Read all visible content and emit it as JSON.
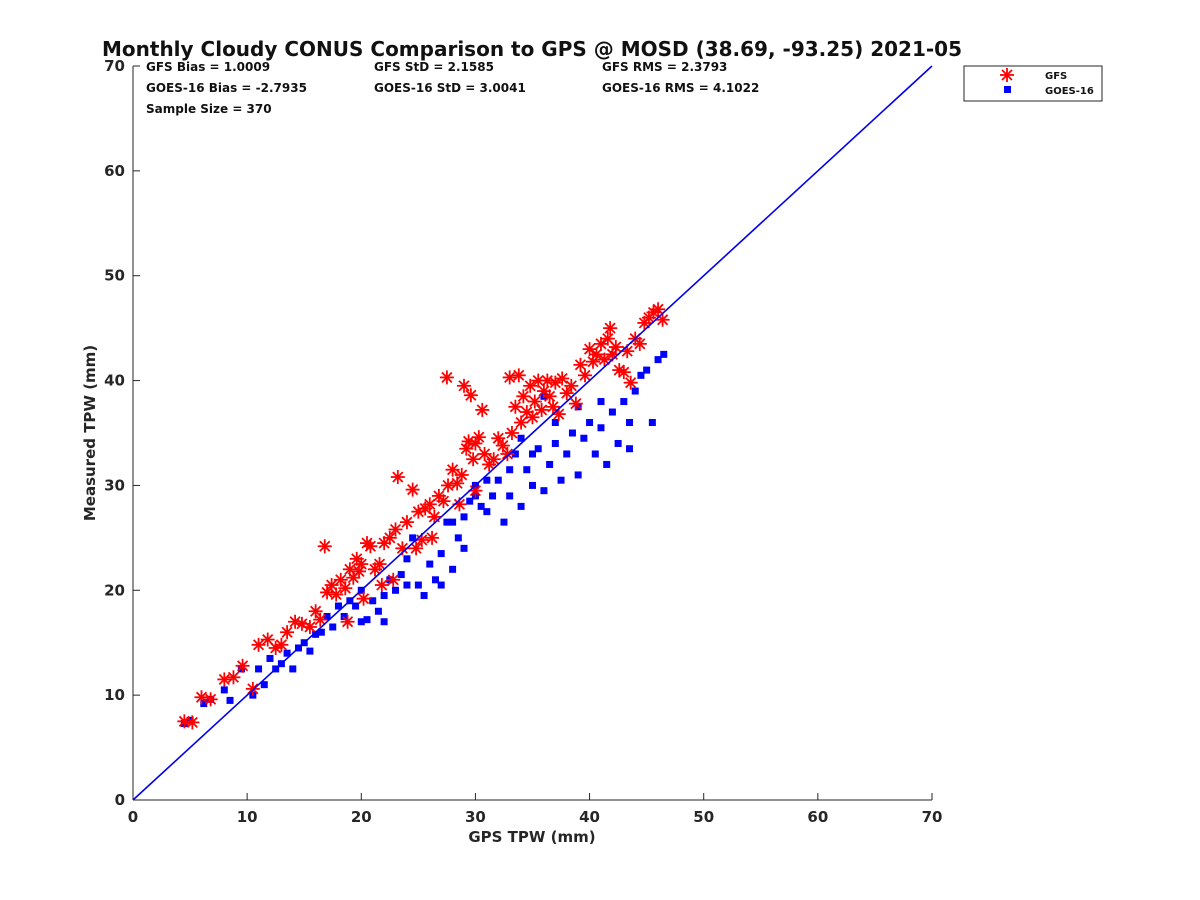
{
  "chart_data": {
    "type": "scatter",
    "title": "Monthly Cloudy CONUS Comparison to GPS @ MOSD (38.69, -93.25) 2021-05",
    "xlabel": "GPS TPW (mm)",
    "ylabel": "Measured TPW (mm)",
    "xlim": [
      0,
      70
    ],
    "ylim": [
      0,
      70
    ],
    "xticks": [
      "0",
      "10",
      "20",
      "30",
      "40",
      "50",
      "60",
      "70"
    ],
    "yticks": [
      "0",
      "10",
      "20",
      "30",
      "40",
      "50",
      "60",
      "70"
    ],
    "grid": false,
    "legend_position": "outside-top-right",
    "stats": {
      "gfs_bias": "GFS Bias = 1.0009",
      "gfs_std": "GFS StD = 2.1585",
      "gfs_rms": "GFS RMS = 2.3793",
      "goes_bias": "GOES-16 Bias = -2.7935",
      "goes_std": "GOES-16 StD = 3.0041",
      "goes_rms": "GOES-16 RMS = 4.1022",
      "sample_size": "Sample Size = 370"
    },
    "reference_line": {
      "name": "1:1 line",
      "x": [
        0,
        70
      ],
      "y": [
        0,
        70
      ],
      "color": "#0000ee"
    },
    "series": [
      {
        "name": "GFS",
        "marker": "asterisk",
        "color": "#ff0000",
        "points": [
          [
            4.5,
            7.5
          ],
          [
            5.2,
            7.4
          ],
          [
            6.0,
            9.8
          ],
          [
            6.8,
            9.6
          ],
          [
            8.0,
            11.5
          ],
          [
            8.8,
            11.7
          ],
          [
            9.6,
            12.8
          ],
          [
            10.5,
            10.6
          ],
          [
            11.0,
            14.8
          ],
          [
            11.8,
            15.3
          ],
          [
            12.5,
            14.5
          ],
          [
            13.0,
            14.8
          ],
          [
            13.5,
            16.0
          ],
          [
            14.2,
            17.0
          ],
          [
            14.8,
            16.8
          ],
          [
            15.5,
            16.5
          ],
          [
            16.0,
            18.0
          ],
          [
            16.4,
            17.2
          ],
          [
            16.8,
            24.2
          ],
          [
            17.0,
            19.8
          ],
          [
            17.4,
            20.5
          ],
          [
            17.8,
            19.6
          ],
          [
            18.2,
            21.0
          ],
          [
            18.6,
            20.2
          ],
          [
            19.0,
            22.0
          ],
          [
            19.3,
            21.2
          ],
          [
            19.6,
            23.0
          ],
          [
            19.8,
            21.8
          ],
          [
            20.0,
            22.5
          ],
          [
            20.5,
            24.5
          ],
          [
            20.8,
            24.2
          ],
          [
            21.2,
            22.0
          ],
          [
            21.6,
            22.5
          ],
          [
            22.0,
            24.5
          ],
          [
            22.5,
            25.0
          ],
          [
            23.0,
            25.8
          ],
          [
            23.2,
            30.8
          ],
          [
            23.6,
            24.0
          ],
          [
            24.0,
            26.5
          ],
          [
            24.5,
            29.6
          ],
          [
            25.0,
            27.5
          ],
          [
            25.3,
            24.8
          ],
          [
            25.6,
            27.8
          ],
          [
            26.0,
            28.2
          ],
          [
            26.4,
            27.0
          ],
          [
            26.8,
            29.0
          ],
          [
            27.2,
            28.5
          ],
          [
            27.6,
            30.0
          ],
          [
            27.5,
            40.3
          ],
          [
            28.0,
            31.5
          ],
          [
            28.4,
            30.2
          ],
          [
            28.8,
            31.0
          ],
          [
            29.0,
            39.5
          ],
          [
            29.2,
            33.5
          ],
          [
            29.4,
            34.2
          ],
          [
            29.6,
            38.6
          ],
          [
            29.8,
            32.5
          ],
          [
            30.0,
            34.0
          ],
          [
            30.3,
            34.6
          ],
          [
            30.6,
            37.2
          ],
          [
            30.8,
            33.0
          ],
          [
            31.2,
            32.0
          ],
          [
            31.6,
            32.5
          ],
          [
            32.0,
            34.5
          ],
          [
            32.4,
            33.8
          ],
          [
            32.8,
            33.0
          ],
          [
            33.0,
            40.3
          ],
          [
            33.2,
            35.0
          ],
          [
            33.5,
            37.5
          ],
          [
            33.8,
            40.5
          ],
          [
            34.0,
            36.0
          ],
          [
            34.2,
            38.5
          ],
          [
            34.5,
            37.0
          ],
          [
            34.8,
            39.5
          ],
          [
            35.0,
            36.5
          ],
          [
            35.2,
            38.0
          ],
          [
            35.5,
            40.0
          ],
          [
            35.8,
            37.2
          ],
          [
            36.0,
            39.0
          ],
          [
            36.3,
            40.0
          ],
          [
            36.5,
            38.5
          ],
          [
            36.8,
            37.5
          ],
          [
            37.0,
            39.8
          ],
          [
            37.3,
            36.8
          ],
          [
            37.6,
            40.2
          ],
          [
            38.0,
            38.8
          ],
          [
            38.4,
            39.5
          ],
          [
            38.8,
            37.8
          ],
          [
            39.2,
            41.5
          ],
          [
            39.6,
            40.5
          ],
          [
            40.0,
            43.0
          ],
          [
            40.3,
            41.8
          ],
          [
            40.6,
            42.5
          ],
          [
            41.0,
            43.5
          ],
          [
            41.3,
            42.0
          ],
          [
            41.6,
            44.0
          ],
          [
            41.8,
            45.0
          ],
          [
            42.0,
            42.5
          ],
          [
            42.3,
            43.2
          ],
          [
            42.6,
            41.0
          ],
          [
            43.0,
            40.8
          ],
          [
            43.3,
            42.8
          ],
          [
            43.6,
            39.8
          ],
          [
            44.0,
            44.0
          ],
          [
            44.4,
            43.5
          ],
          [
            44.8,
            45.5
          ],
          [
            45.2,
            46.0
          ],
          [
            45.6,
            46.5
          ],
          [
            46.0,
            46.8
          ],
          [
            46.4,
            45.8
          ],
          [
            30.0,
            29.5
          ],
          [
            28.6,
            28.2
          ],
          [
            26.2,
            25.0
          ],
          [
            24.8,
            24.0
          ],
          [
            22.8,
            21.0
          ],
          [
            21.8,
            20.5
          ],
          [
            18.8,
            17.0
          ],
          [
            20.2,
            19.2
          ]
        ]
      },
      {
        "name": "GOES-16",
        "marker": "square",
        "color": "#0000ff",
        "points": [
          [
            4.5,
            7.3
          ],
          [
            5.0,
            7.6
          ],
          [
            6.2,
            9.2
          ],
          [
            6.8,
            9.6
          ],
          [
            8.0,
            10.5
          ],
          [
            8.5,
            9.5
          ],
          [
            9.5,
            12.5
          ],
          [
            10.5,
            10.0
          ],
          [
            11.0,
            12.5
          ],
          [
            11.5,
            11.0
          ],
          [
            12.0,
            13.5
          ],
          [
            12.5,
            12.5
          ],
          [
            13.0,
            13.0
          ],
          [
            13.5,
            14.0
          ],
          [
            14.0,
            12.5
          ],
          [
            14.5,
            14.5
          ],
          [
            15.0,
            15.0
          ],
          [
            15.5,
            14.2
          ],
          [
            16.0,
            15.8
          ],
          [
            16.5,
            16.0
          ],
          [
            17.0,
            17.5
          ],
          [
            17.5,
            16.5
          ],
          [
            18.0,
            18.5
          ],
          [
            18.5,
            17.5
          ],
          [
            19.0,
            19.0
          ],
          [
            19.5,
            18.5
          ],
          [
            20.0,
            20.0
          ],
          [
            20.5,
            17.2
          ],
          [
            21.0,
            19.0
          ],
          [
            21.5,
            18.0
          ],
          [
            22.0,
            19.5
          ],
          [
            22.5,
            21.0
          ],
          [
            23.0,
            20.0
          ],
          [
            23.5,
            21.5
          ],
          [
            24.0,
            23.0
          ],
          [
            24.5,
            25.0
          ],
          [
            25.0,
            20.5
          ],
          [
            25.5,
            19.5
          ],
          [
            26.0,
            22.5
          ],
          [
            26.5,
            21.0
          ],
          [
            27.0,
            23.5
          ],
          [
            27.5,
            26.5
          ],
          [
            28.0,
            22.0
          ],
          [
            28.5,
            25.0
          ],
          [
            29.0,
            27.0
          ],
          [
            29.5,
            28.5
          ],
          [
            30.0,
            30.0
          ],
          [
            30.5,
            28.0
          ],
          [
            31.0,
            27.5
          ],
          [
            31.5,
            29.0
          ],
          [
            32.0,
            30.5
          ],
          [
            32.5,
            26.5
          ],
          [
            33.0,
            29.0
          ],
          [
            33.5,
            33.0
          ],
          [
            34.0,
            28.0
          ],
          [
            34.5,
            31.5
          ],
          [
            35.0,
            30.0
          ],
          [
            35.5,
            33.5
          ],
          [
            36.0,
            29.5
          ],
          [
            36.5,
            32.0
          ],
          [
            37.0,
            34.0
          ],
          [
            37.5,
            30.5
          ],
          [
            38.0,
            33.0
          ],
          [
            38.5,
            35.0
          ],
          [
            39.0,
            31.0
          ],
          [
            39.5,
            34.5
          ],
          [
            40.0,
            36.0
          ],
          [
            40.5,
            33.0
          ],
          [
            41.0,
            35.5
          ],
          [
            41.5,
            32.0
          ],
          [
            42.0,
            37.0
          ],
          [
            42.5,
            34.0
          ],
          [
            43.0,
            38.0
          ],
          [
            43.5,
            36.0
          ],
          [
            44.0,
            39.0
          ],
          [
            44.5,
            40.5
          ],
          [
            45.0,
            41.0
          ],
          [
            45.5,
            36.0
          ],
          [
            46.0,
            42.0
          ],
          [
            46.5,
            42.5
          ],
          [
            29.0,
            24.0
          ],
          [
            27.0,
            20.5
          ],
          [
            24.0,
            20.5
          ],
          [
            22.0,
            17.0
          ],
          [
            20.0,
            17.0
          ],
          [
            30.0,
            29.0
          ],
          [
            33.0,
            31.5
          ],
          [
            35.0,
            33.0
          ],
          [
            37.0,
            36.0
          ],
          [
            39.0,
            37.5
          ],
          [
            41.0,
            38.0
          ],
          [
            43.5,
            33.5
          ],
          [
            36.0,
            38.5
          ],
          [
            34.0,
            34.5
          ],
          [
            31.0,
            30.5
          ],
          [
            28.0,
            26.5
          ]
        ]
      }
    ]
  }
}
